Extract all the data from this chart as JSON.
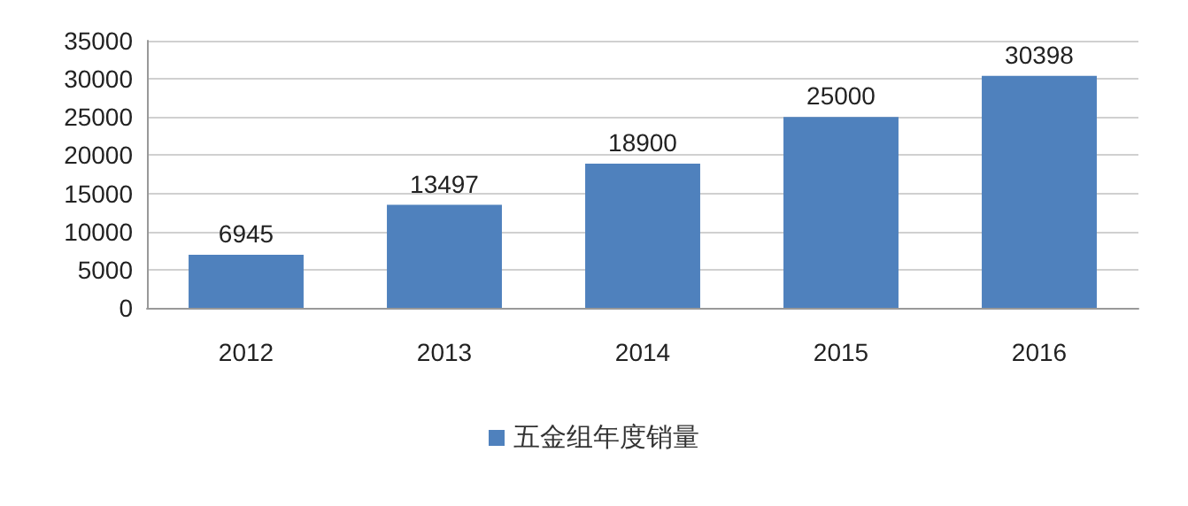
{
  "chart_data": {
    "type": "bar",
    "categories": [
      "2012",
      "2013",
      "2014",
      "2015",
      "2016"
    ],
    "series": [
      {
        "name": "五金组年度销量",
        "color": "#4f81bd",
        "values": [
          6945,
          13497,
          18900,
          25000,
          30398
        ]
      }
    ],
    "ylim": [
      0,
      35000
    ],
    "yticks": [
      0,
      5000,
      10000,
      15000,
      20000,
      25000,
      30000,
      35000
    ],
    "grid": "y",
    "legend": "bottom",
    "data_labels": true
  }
}
